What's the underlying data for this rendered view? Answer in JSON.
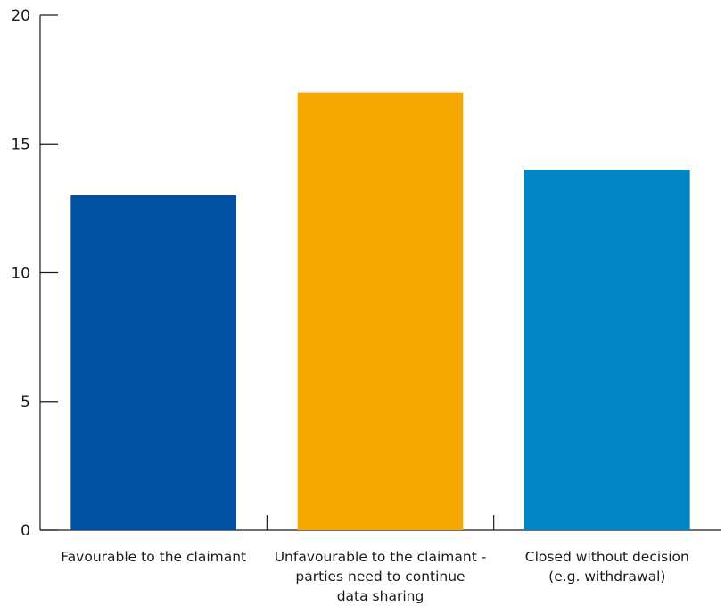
{
  "chart_data": {
    "type": "bar",
    "title": "",
    "xlabel": "",
    "ylabel": "",
    "ylim": [
      0,
      20
    ],
    "yticks": [
      0,
      5,
      10,
      15,
      20
    ],
    "grid": false,
    "categories": [
      [
        "Favourable to the claimant"
      ],
      [
        "Unfavourable to the claimant -",
        "parties need to continue",
        "data sharing"
      ],
      [
        "Closed without decision",
        "(e.g. withdrawal)"
      ]
    ],
    "values": [
      13,
      17,
      14
    ],
    "colors": [
      "#0051a1",
      "#f5a800",
      "#0085c5"
    ]
  }
}
